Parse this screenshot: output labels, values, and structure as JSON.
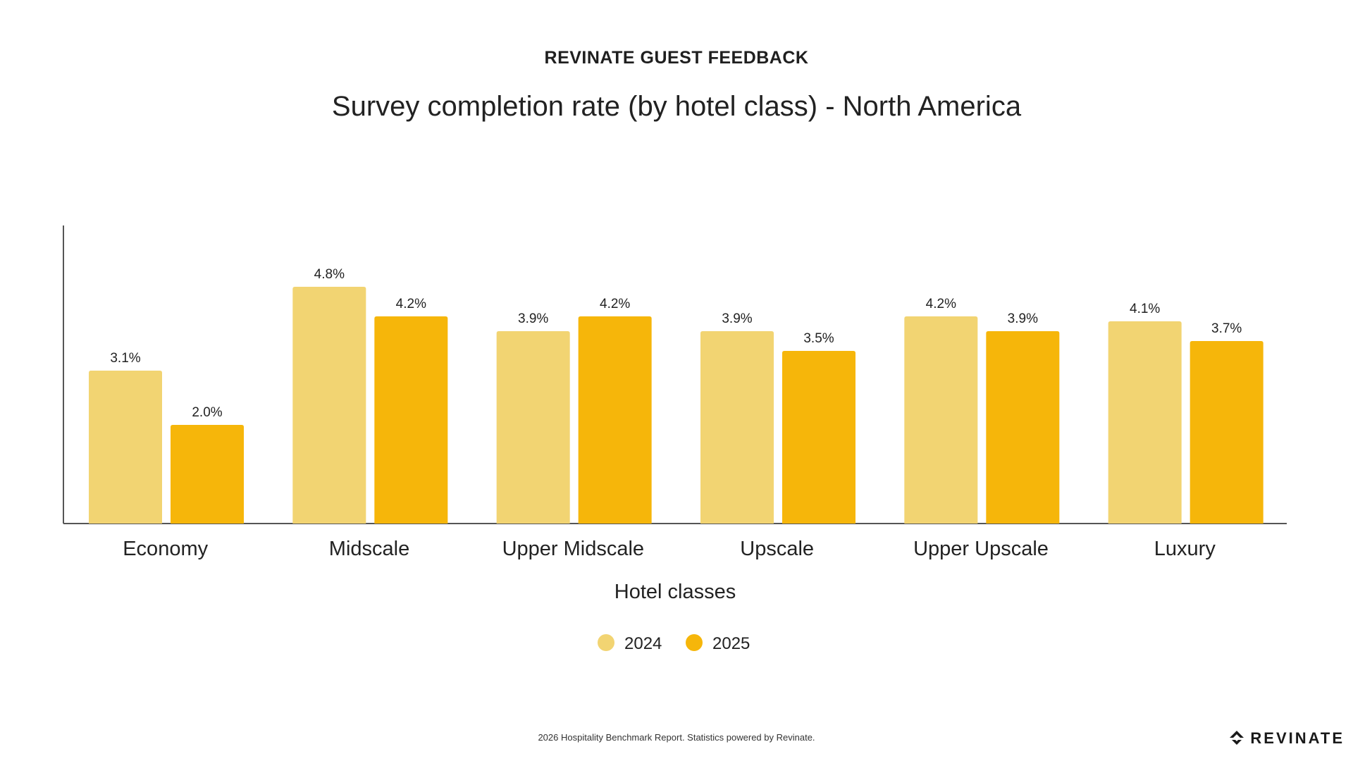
{
  "header": {
    "kicker": "REVINATE GUEST FEEDBACK",
    "title": "Survey completion rate (by hotel class) - North America"
  },
  "chart_data": {
    "type": "bar",
    "categories": [
      "Economy",
      "Midscale",
      "Upper Midscale",
      "Upscale",
      "Upper Upscale",
      "Luxury"
    ],
    "series": [
      {
        "name": "2024",
        "values": [
          3.1,
          4.8,
          3.9,
          3.9,
          4.2,
          4.1
        ],
        "labels": [
          "3.1%",
          "4.8%",
          "3.9%",
          "3.9%",
          "4.2%",
          "4.1%"
        ],
        "color": "#F2D472"
      },
      {
        "name": "2025",
        "values": [
          2.0,
          4.2,
          4.2,
          3.5,
          3.9,
          3.7
        ],
        "labels": [
          "2.0%",
          "4.2%",
          "4.2%",
          "3.5%",
          "3.9%",
          "3.7%"
        ],
        "color": "#F6B60A"
      }
    ],
    "xlabel": "Hotel classes",
    "ylabel": "",
    "ylim": [
      0,
      6
    ],
    "grid": false,
    "legend": "bottom-center"
  },
  "footer": {
    "note": "2026 Hospitality Benchmark Report. Statistics powered by Revinate.",
    "brand": "REVINATE"
  },
  "colors": {
    "axis": "#555555",
    "text": "#222222"
  }
}
